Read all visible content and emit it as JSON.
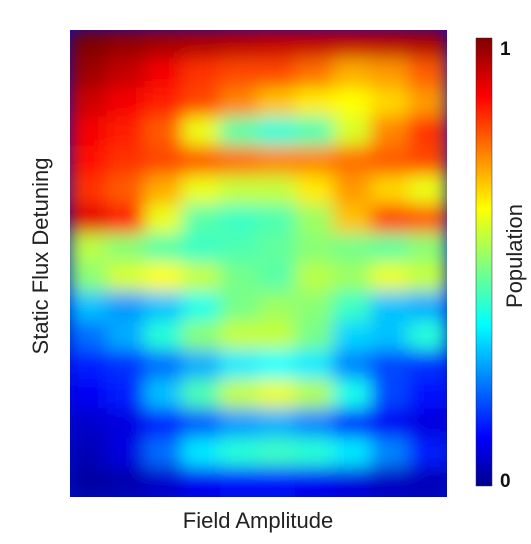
{
  "chart_data": {
    "type": "heatmap",
    "title": "",
    "xlabel": "Field Amplitude",
    "ylabel": "Static Flux Detuning",
    "colorbar": {
      "label": "Population",
      "range": [
        0,
        1
      ],
      "tick_labels": [
        "0",
        "1"
      ],
      "colormap": "jet"
    },
    "x_ticks_shown": false,
    "y_ticks_shown": false,
    "grid": false,
    "z_grid_note_rows_top_to_bottom": "values sampled on a 10-column grid across Field Amplitude",
    "z": [
      [
        1.0,
        0.98,
        0.96,
        0.95,
        0.94,
        0.93,
        0.93,
        0.93,
        0.94,
        0.95
      ],
      [
        0.97,
        0.93,
        0.88,
        0.82,
        0.8,
        0.8,
        0.76,
        0.7,
        0.72,
        0.78
      ],
      [
        0.92,
        0.88,
        0.84,
        0.8,
        0.74,
        0.68,
        0.64,
        0.62,
        0.66,
        0.72
      ],
      [
        0.88,
        0.84,
        0.78,
        0.6,
        0.45,
        0.4,
        0.44,
        0.58,
        0.74,
        0.82
      ],
      [
        0.86,
        0.82,
        0.8,
        0.78,
        0.76,
        0.74,
        0.74,
        0.76,
        0.78,
        0.8
      ],
      [
        0.82,
        0.78,
        0.7,
        0.6,
        0.56,
        0.56,
        0.64,
        0.72,
        0.66,
        0.6
      ],
      [
        0.9,
        0.84,
        0.6,
        0.45,
        0.42,
        0.44,
        0.52,
        0.68,
        0.8,
        0.78
      ],
      [
        0.55,
        0.5,
        0.45,
        0.42,
        0.44,
        0.46,
        0.5,
        0.48,
        0.46,
        0.5
      ],
      [
        0.5,
        0.58,
        0.62,
        0.56,
        0.48,
        0.45,
        0.55,
        0.52,
        0.6,
        0.56
      ],
      [
        0.3,
        0.26,
        0.3,
        0.38,
        0.48,
        0.52,
        0.5,
        0.42,
        0.3,
        0.28
      ],
      [
        0.22,
        0.28,
        0.4,
        0.5,
        0.56,
        0.56,
        0.48,
        0.32,
        0.3,
        0.4
      ],
      [
        0.14,
        0.16,
        0.22,
        0.28,
        0.34,
        0.36,
        0.34,
        0.24,
        0.18,
        0.16
      ],
      [
        0.1,
        0.14,
        0.3,
        0.44,
        0.56,
        0.6,
        0.54,
        0.38,
        0.18,
        0.12
      ],
      [
        0.06,
        0.08,
        0.14,
        0.2,
        0.26,
        0.28,
        0.24,
        0.16,
        0.1,
        0.08
      ],
      [
        0.04,
        0.08,
        0.22,
        0.34,
        0.4,
        0.42,
        0.4,
        0.34,
        0.24,
        0.14
      ],
      [
        0.02,
        0.03,
        0.06,
        0.1,
        0.12,
        0.12,
        0.1,
        0.08,
        0.05,
        0.04
      ]
    ]
  }
}
